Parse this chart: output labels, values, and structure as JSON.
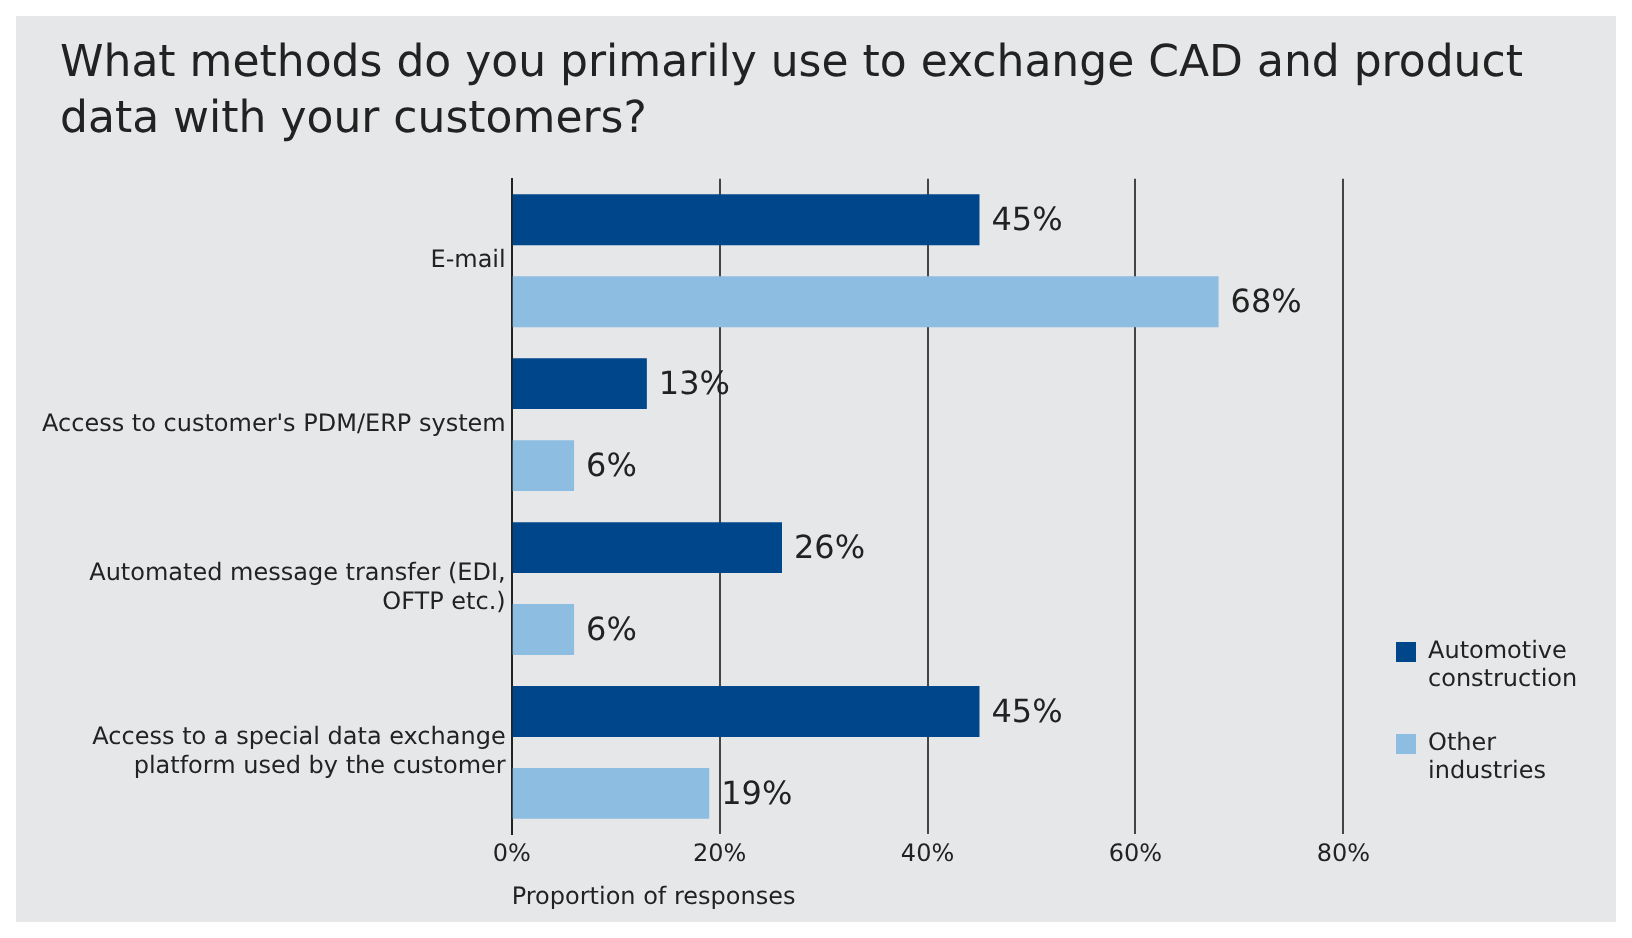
{
  "chart_data": {
    "type": "bar",
    "orientation": "horizontal",
    "title": "What methods do you primarily use to exchange CAD and product data with your customers?",
    "xlabel": "Proportion of responses",
    "categories": [
      "E-mail",
      "Access to customer's PDM/ERP system",
      "Automated message transfer (EDI, OFTP etc.)",
      "Access to a special data exchange platform used by the customer"
    ],
    "series": [
      {
        "name": "Automotive construction",
        "color": "#00468b",
        "values": [
          45,
          13,
          26,
          45
        ],
        "value_labels": [
          "45%",
          "13%",
          "26%",
          "45%"
        ]
      },
      {
        "name": "Other industries",
        "color": "#8dbde0",
        "values": [
          68,
          6,
          6,
          19
        ],
        "value_labels": [
          "68%",
          "6%",
          "6%",
          "19%"
        ]
      }
    ],
    "xlim": [
      0,
      80
    ],
    "xticks": [
      {
        "value": 0,
        "label": "0%"
      },
      {
        "value": 20,
        "label": "20%"
      },
      {
        "value": 40,
        "label": "40%"
      },
      {
        "value": 60,
        "label": "60%"
      },
      {
        "value": 80,
        "label": "80%"
      }
    ],
    "grid": "x",
    "legend": "right"
  }
}
